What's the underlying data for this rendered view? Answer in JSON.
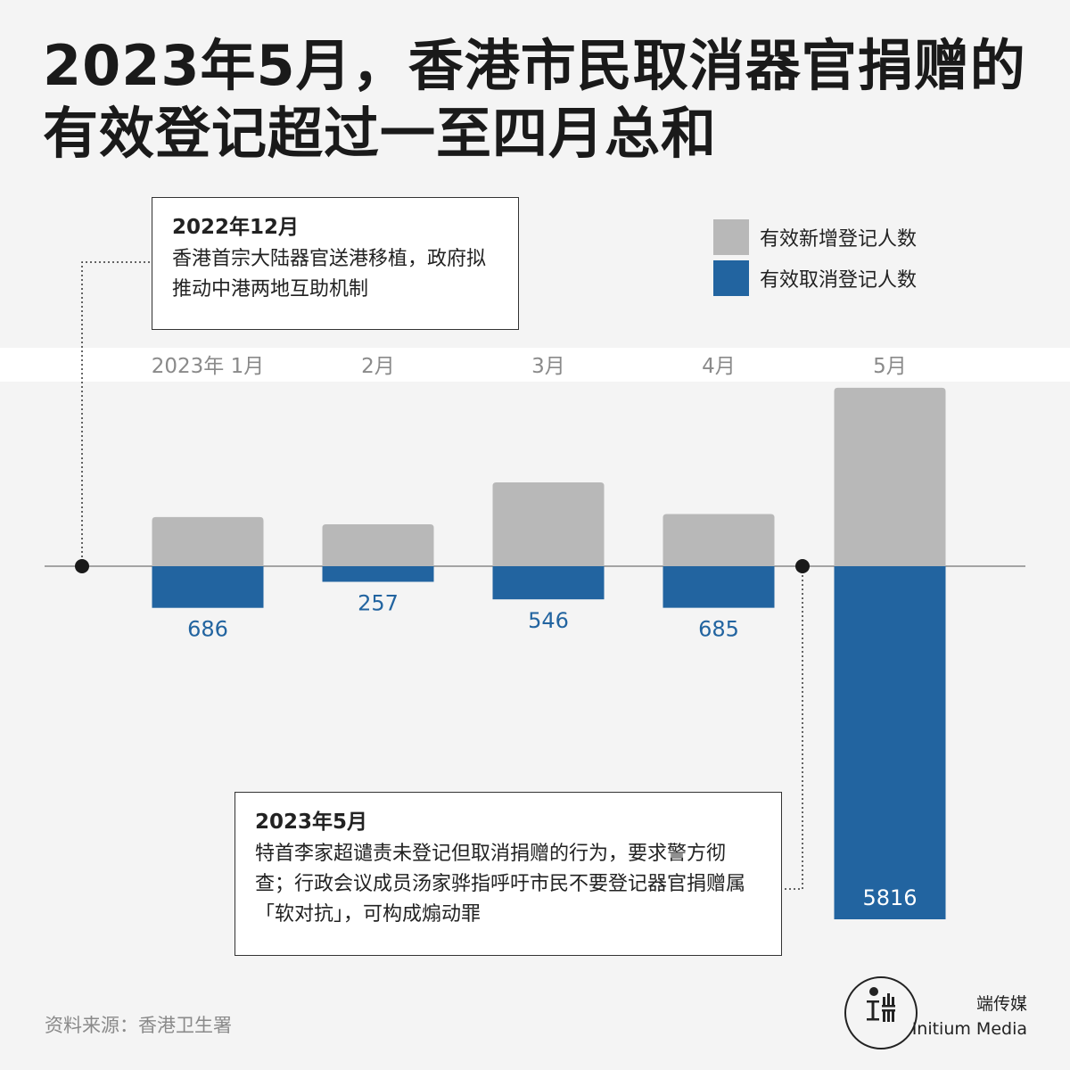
{
  "title": "2023年5月，香港市民取消器官捐赠的有效登记超过一至四月总和",
  "legend": {
    "new_label": "有效新增登记人数",
    "cancel_label": "有效取消登记人数"
  },
  "annotations": {
    "dec2022": {
      "date": "2022年12月",
      "text": "香港首宗大陆器官送港移植，政府拟推动中港两地互助机制"
    },
    "may2023": {
      "date": "2023年5月",
      "text": "特首李家超谴责未登记但取消捐赠的行为，要求警方彻查；行政会议成员汤家骅指呼吁市民不要登记器官捐赠属「软对抗」，可构成煽动罪"
    }
  },
  "source": "资料来源：香港卫生署",
  "brand": {
    "cn": "端传媒",
    "en": "Initium Media"
  },
  "colors": {
    "new": "#b8b8b8",
    "cancel": "#2264a0",
    "label": "#2264a0",
    "axis": "#8a8a8a",
    "month_label": "#8a8a8a"
  },
  "chart_data": {
    "type": "bar",
    "categories": [
      "2023年 1月",
      "2月",
      "3月",
      "4月",
      "5月"
    ],
    "series": [
      {
        "name": "有效新增登记人数",
        "values": [
          810,
          690,
          1380,
          860,
          2940
        ]
      },
      {
        "name": "有效取消登记人数",
        "values": [
          686,
          257,
          546,
          685,
          5816
        ]
      }
    ],
    "data_labels": [
      "686",
      "257",
      "546",
      "685",
      "5816"
    ]
  }
}
